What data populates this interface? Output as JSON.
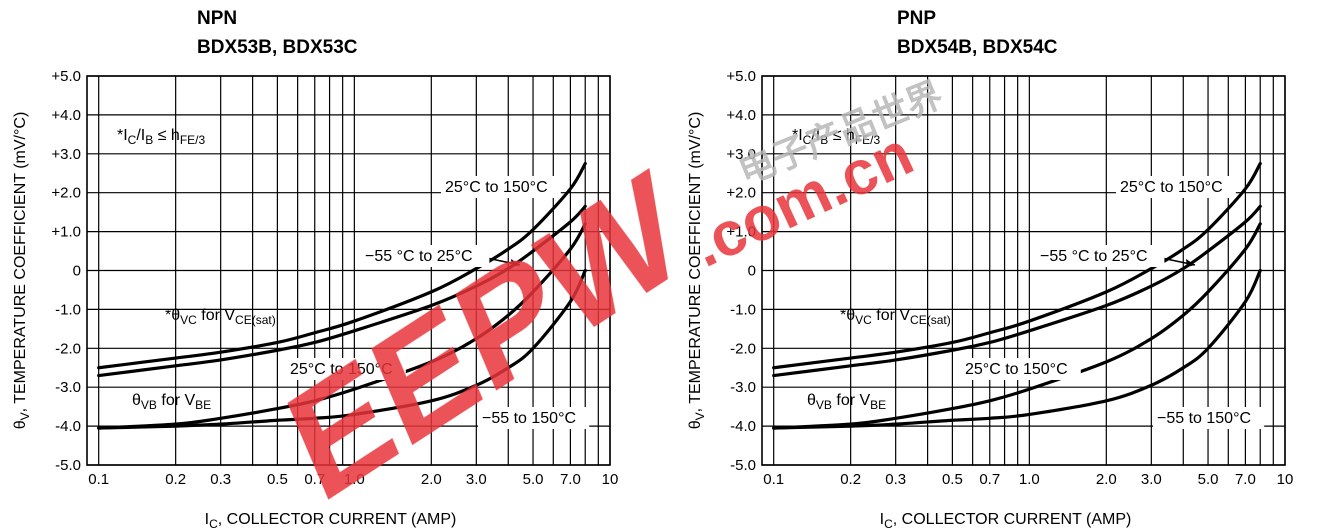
{
  "chart_data": [
    {
      "type": "line",
      "title": "NPN",
      "subtitle": "BDX53B, BDX53C",
      "xlabel": "I",
      "xlabel_sub": "C",
      "xlabel_rest": ", COLLECTOR CURRENT (AMP)",
      "ylabel": "θ",
      "ylabel_sub": "V",
      "ylabel_rest": ", TEMPERATURE COEFFICIENT (mV/°C)",
      "x_scale": "log",
      "xlim": [
        0.09,
        10
      ],
      "ylim": [
        -5.0,
        5.0
      ],
      "grid": true,
      "x_ticks": [
        0.1,
        0.2,
        0.3,
        0.5,
        0.7,
        1.0,
        2.0,
        3.0,
        5.0,
        7.0,
        10
      ],
      "x_tick_labels": [
        "0.1",
        "0.2",
        "0.3",
        "0.5",
        "0.7",
        "1.0",
        "2.0",
        "3.0",
        "5.0",
        "7.0",
        "10"
      ],
      "y_ticks": [
        5,
        4,
        3,
        2,
        1,
        0,
        -1,
        -2,
        -3,
        -4,
        -5
      ],
      "y_tick_labels": [
        "+5.0",
        "+4.0",
        "+3.0",
        "+2.0",
        "+1.0",
        "0",
        "-1.0",
        "-2.0",
        "-3.0",
        "-4.0",
        "-5.0"
      ],
      "condition_label": "*IC/IB ≤ hFE/3",
      "series": [
        {
          "name": "25°C to 150°C",
          "group": "θVC for VCE(sat)",
          "x": [
            0.1,
            0.2,
            0.3,
            0.5,
            0.7,
            1.0,
            2.0,
            3.0,
            4.0,
            5.0,
            7.0,
            8.0
          ],
          "y": [
            -2.5,
            -2.25,
            -2.1,
            -1.85,
            -1.6,
            -1.3,
            -0.55,
            0.05,
            0.55,
            1.05,
            2.1,
            2.75
          ]
        },
        {
          "name": "-55 °C to 25°C",
          "group": "θVC for VCE(sat)",
          "x": [
            0.1,
            0.2,
            0.3,
            0.5,
            0.7,
            1.0,
            2.0,
            3.0,
            4.0,
            5.0,
            7.0,
            8.0
          ],
          "y": [
            -2.7,
            -2.45,
            -2.3,
            -2.05,
            -1.85,
            -1.55,
            -0.9,
            -0.4,
            0.05,
            0.5,
            1.25,
            1.65
          ]
        },
        {
          "name": "25°C to 150°C",
          "group": "θVB for VBE",
          "x": [
            0.1,
            0.2,
            0.3,
            0.5,
            0.7,
            1.0,
            2.0,
            3.0,
            4.0,
            5.0,
            7.0,
            8.0
          ],
          "y": [
            -4.05,
            -3.95,
            -3.8,
            -3.55,
            -3.35,
            -3.05,
            -2.35,
            -1.75,
            -1.15,
            -0.55,
            0.55,
            1.2
          ]
        },
        {
          "name": "-55 to 150°C",
          "group": "θVB for VBE",
          "x": [
            0.1,
            0.2,
            0.3,
            0.5,
            0.7,
            1.0,
            2.0,
            3.0,
            4.0,
            5.0,
            7.0,
            8.0
          ],
          "y": [
            -4.05,
            -4.0,
            -3.95,
            -3.85,
            -3.8,
            -3.7,
            -3.35,
            -2.95,
            -2.5,
            -2.0,
            -0.8,
            0.0
          ]
        }
      ],
      "annotations": [
        {
          "text": "25°C to 150°C"
        },
        {
          "text": "−55 °C to 25°C"
        },
        {
          "text": "*θVC for VCE(sat)"
        },
        {
          "text": "25°C to 150°C"
        },
        {
          "text": "θVB for VBE"
        },
        {
          "text": "−55 to 150°C"
        }
      ]
    },
    {
      "type": "line",
      "title": "PNP",
      "subtitle": "BDX54B, BDX54C",
      "xlabel": "I",
      "xlabel_sub": "C",
      "xlabel_rest": ", COLLECTOR CURRENT (AMP)",
      "ylabel": "θ",
      "ylabel_sub": "V",
      "ylabel_rest": ", TEMPERATURE COEFFICIENT (mV/°C)",
      "x_scale": "log",
      "xlim": [
        0.09,
        10
      ],
      "ylim": [
        -5.0,
        5.0
      ],
      "grid": true,
      "x_ticks": [
        0.1,
        0.2,
        0.3,
        0.5,
        0.7,
        1.0,
        2.0,
        3.0,
        5.0,
        7.0,
        10
      ],
      "x_tick_labels": [
        "0.1",
        "0.2",
        "0.3",
        "0.5",
        "0.7",
        "1.0",
        "2.0",
        "3.0",
        "5.0",
        "7.0",
        "10"
      ],
      "y_ticks": [
        5,
        4,
        3,
        2,
        1,
        0,
        -1,
        -2,
        -3,
        -4,
        -5
      ],
      "y_tick_labels": [
        "+5.0",
        "+4.0",
        "+3.0",
        "+2.0",
        "+1.0",
        "0",
        "-1.0",
        "-2.0",
        "-3.0",
        "-4.0",
        "-5.0"
      ],
      "condition_label": "*IC/IB ≤ hFE/3",
      "series": [
        {
          "name": "25°C to 150°C",
          "group": "θVC for VCE(sat)",
          "x": [
            0.1,
            0.2,
            0.3,
            0.5,
            0.7,
            1.0,
            2.0,
            3.0,
            4.0,
            5.0,
            7.0,
            8.0
          ],
          "y": [
            -2.5,
            -2.25,
            -2.1,
            -1.85,
            -1.6,
            -1.3,
            -0.55,
            0.05,
            0.55,
            1.05,
            2.1,
            2.75
          ]
        },
        {
          "name": "-55 °C to 25°C",
          "group": "θVC for VCE(sat)",
          "x": [
            0.1,
            0.2,
            0.3,
            0.5,
            0.7,
            1.0,
            2.0,
            3.0,
            4.0,
            5.0,
            7.0,
            8.0
          ],
          "y": [
            -2.7,
            -2.45,
            -2.3,
            -2.05,
            -1.85,
            -1.55,
            -0.9,
            -0.4,
            0.05,
            0.5,
            1.25,
            1.65
          ]
        },
        {
          "name": "25°C to 150°C",
          "group": "θVB for VBE",
          "x": [
            0.1,
            0.2,
            0.3,
            0.5,
            0.7,
            1.0,
            2.0,
            3.0,
            4.0,
            5.0,
            7.0,
            8.0
          ],
          "y": [
            -4.05,
            -3.95,
            -3.8,
            -3.55,
            -3.35,
            -3.05,
            -2.35,
            -1.75,
            -1.15,
            -0.55,
            0.55,
            1.2
          ]
        },
        {
          "name": "-55 to 150°C",
          "group": "θVB for VBE",
          "x": [
            0.1,
            0.2,
            0.3,
            0.5,
            0.7,
            1.0,
            2.0,
            3.0,
            4.0,
            5.0,
            7.0,
            8.0
          ],
          "y": [
            -4.05,
            -4.0,
            -3.95,
            -3.85,
            -3.8,
            -3.7,
            -3.35,
            -2.95,
            -2.5,
            -2.0,
            -0.8,
            0.0
          ]
        }
      ],
      "annotations": [
        {
          "text": "25°C to 150°C"
        },
        {
          "text": "−55 °C to 25°C"
        },
        {
          "text": "*θVC for VCE(sat)"
        },
        {
          "text": "25°C to 150°C"
        },
        {
          "text": "θVB for VBE"
        },
        {
          "text": "−55 to 150°C"
        }
      ]
    }
  ],
  "watermark": {
    "text_big": "EEPW",
    "text_small": ".com.cn",
    "text_cn": "电子产品世界",
    "color": "#e8343a",
    "color_cn": "#b8b8b8"
  },
  "colors": {
    "curve": "#000000",
    "curve_overlay": "#6a1a1a",
    "grid": "#000000",
    "background": "#ffffff"
  }
}
